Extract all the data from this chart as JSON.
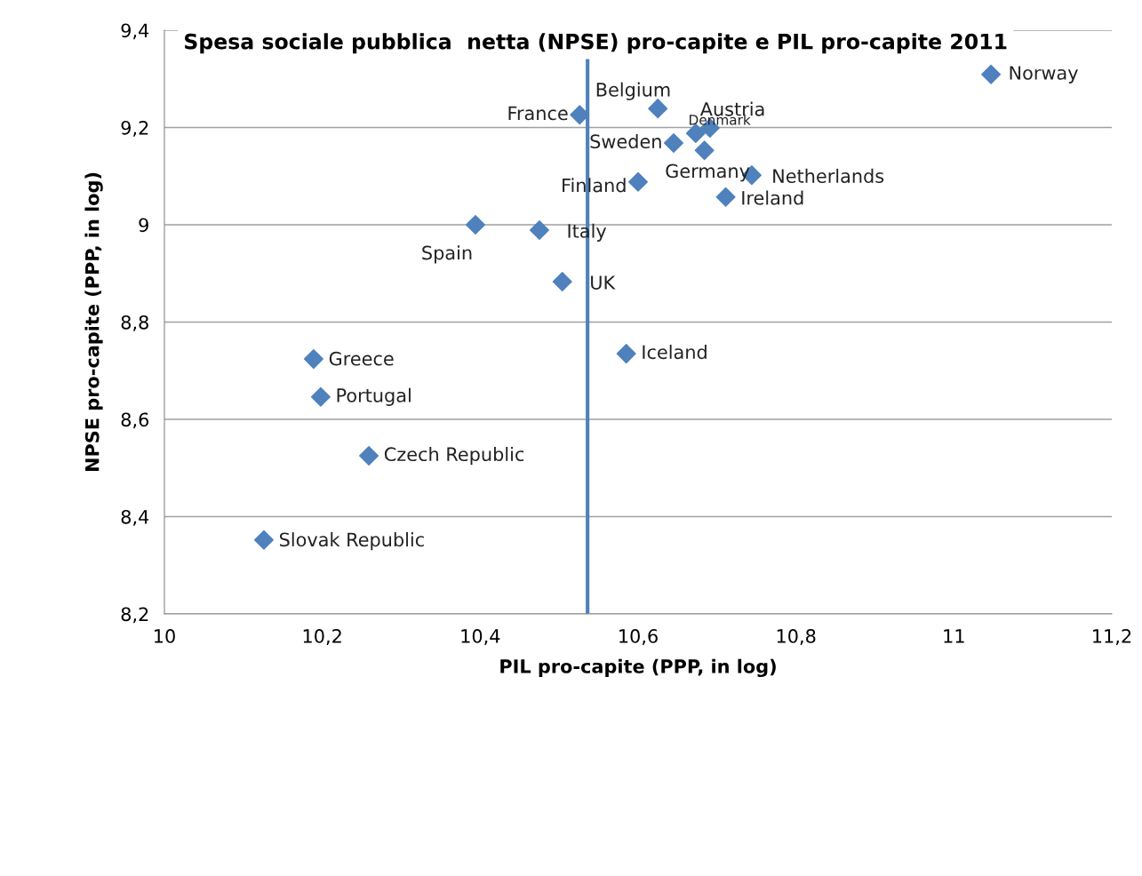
{
  "chart_data": {
    "type": "scatter",
    "title": "Spesa sociale pubblica  netta (NPSE) pro-capite e PIL pro-capite 2011",
    "xlabel": "PIL pro-capite (PPP, in log)",
    "ylabel": "NPSE pro-capite (PPP, in log)",
    "xlim": [
      10,
      11.2
    ],
    "ylim": [
      8.2,
      9.4
    ],
    "xticks": [
      {
        "value": 10,
        "label": "10"
      },
      {
        "value": 10.2,
        "label": "10,2"
      },
      {
        "value": 10.4,
        "label": "10,4"
      },
      {
        "value": 10.6,
        "label": "10,6"
      },
      {
        "value": 10.8,
        "label": "10,8"
      },
      {
        "value": 11,
        "label": "11"
      },
      {
        "value": 11.2,
        "label": "11,2"
      }
    ],
    "yticks": [
      {
        "value": 8.2,
        "label": "8,2"
      },
      {
        "value": 8.4,
        "label": "8,4"
      },
      {
        "value": 8.6,
        "label": "8,6"
      },
      {
        "value": 8.8,
        "label": "8,8"
      },
      {
        "value": 9,
        "label": "9"
      },
      {
        "value": 9.2,
        "label": "9,2"
      },
      {
        "value": 9.4,
        "label": "9,4"
      }
    ],
    "grid": "y",
    "marker": "diamond",
    "series": [
      {
        "color": "#4f81bd",
        "x": [
          11.047,
          10.625,
          10.691,
          10.673,
          10.526,
          10.645,
          10.684,
          10.744,
          10.6,
          10.711,
          10.394,
          10.475,
          10.504,
          10.585,
          10.189,
          10.198,
          10.259,
          10.126
        ],
        "values": [
          9.309,
          9.239,
          9.199,
          9.188,
          9.226,
          9.168,
          9.153,
          9.102,
          9.088,
          9.057,
          9.0,
          8.989,
          8.883,
          8.735,
          8.724,
          8.646,
          8.525,
          8.352
        ]
      }
    ],
    "ref_lines": [
      {
        "axis": "x",
        "value": 10.536,
        "color": "#4f81bd"
      }
    ],
    "annotations": [
      {
        "text": "Norway",
        "x": 11.047,
        "y": 9.309
      },
      {
        "text": "Belgium",
        "x": 10.625,
        "y": 9.239
      },
      {
        "text": "Austria",
        "x": 10.691,
        "y": 9.199
      },
      {
        "text": "Denmark",
        "x": 10.673,
        "y": 9.188
      },
      {
        "text": "France",
        "x": 10.526,
        "y": 9.226
      },
      {
        "text": "Sweden",
        "x": 10.645,
        "y": 9.168
      },
      {
        "text": "Germany",
        "x": 10.684,
        "y": 9.153
      },
      {
        "text": "Netherlands",
        "x": 10.744,
        "y": 9.102
      },
      {
        "text": "Finland",
        "x": 10.6,
        "y": 9.088
      },
      {
        "text": "Ireland",
        "x": 10.711,
        "y": 9.057
      },
      {
        "text": "Spain",
        "x": 10.394,
        "y": 9.0
      },
      {
        "text": "Italy",
        "x": 10.475,
        "y": 8.989
      },
      {
        "text": "UK",
        "x": 10.504,
        "y": 8.883
      },
      {
        "text": "Iceland",
        "x": 10.585,
        "y": 8.735
      },
      {
        "text": "Greece",
        "x": 10.189,
        "y": 8.724
      },
      {
        "text": "Portugal",
        "x": 10.198,
        "y": 8.646
      },
      {
        "text": "Czech Republic",
        "x": 10.259,
        "y": 8.525
      },
      {
        "text": "Slovak Republic",
        "x": 10.126,
        "y": 8.352
      }
    ]
  }
}
